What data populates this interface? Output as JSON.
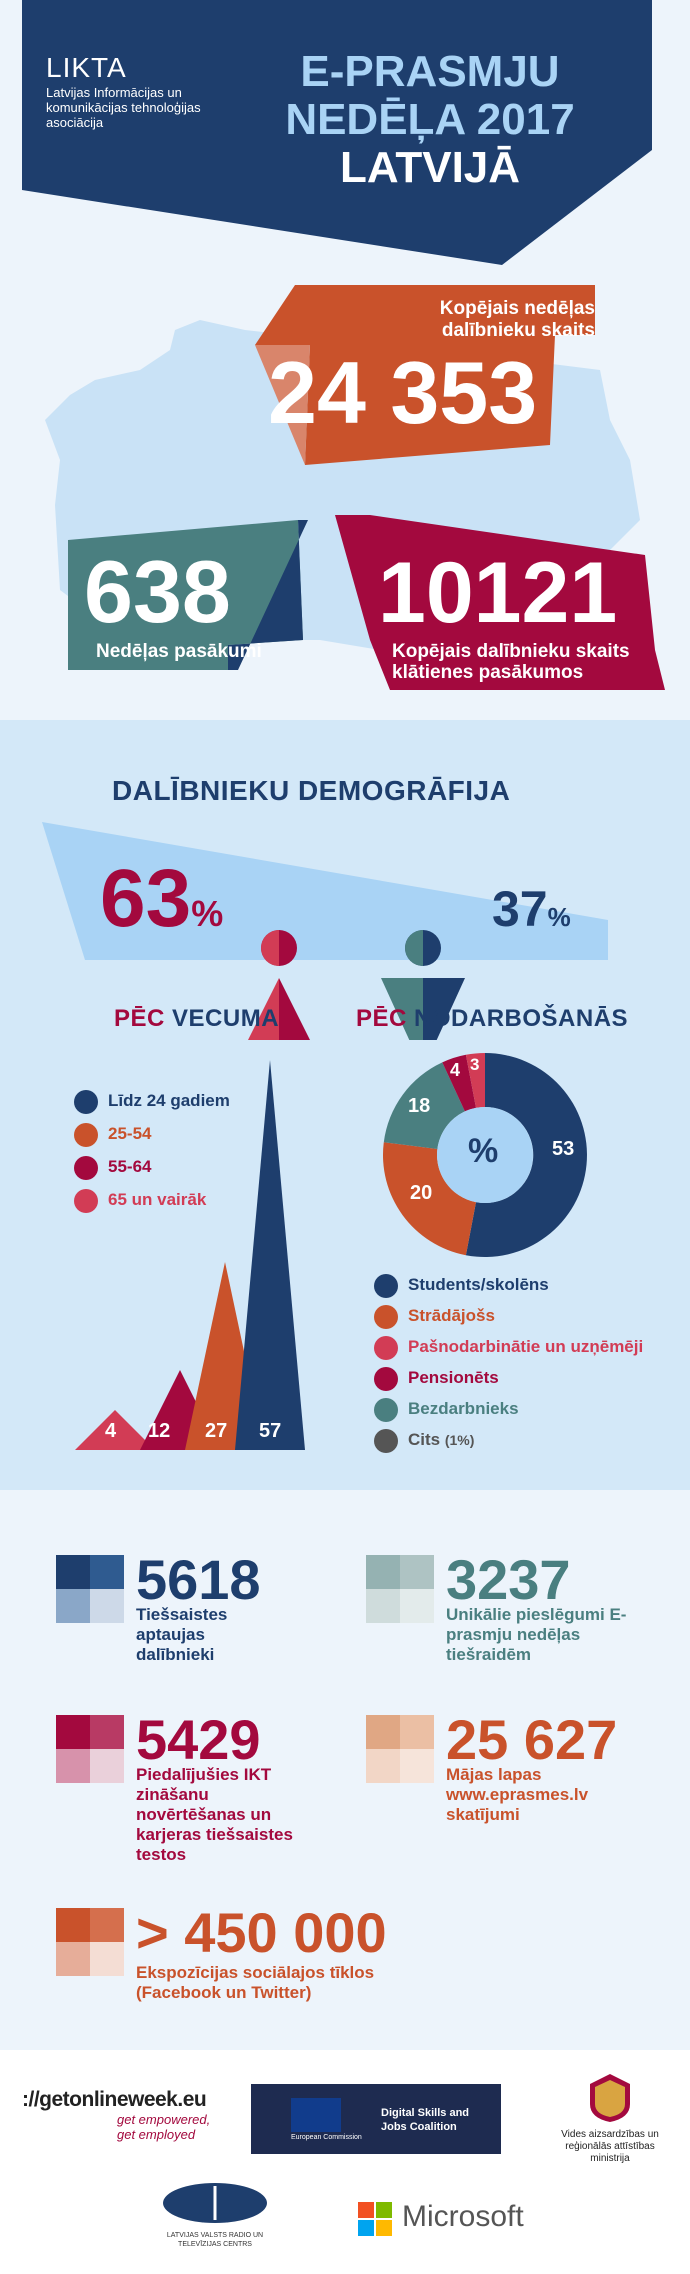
{
  "header": {
    "org": "LIKTA",
    "org_sub": "Latvijas Informācijas un komunikācijas tehnoloģijas asociācija",
    "title_line1": "E-PRASMJU",
    "title_line2": "NEDĒĻA 2017",
    "title_line3": "LATVIJĀ"
  },
  "stats": {
    "total_label": "Kopējais nedēļas dalībnieku skaits",
    "total_value": "24 353",
    "events_value": "638",
    "events_label": "Nedēļas pasākumi",
    "inperson_value": "10121",
    "inperson_label": "Kopējais dalībnieku skaits klātienes pasākumos"
  },
  "demographics": {
    "title": "DALĪBNIEKU DEMOGRĀFIJA",
    "female_pct": "63",
    "male_pct": "37",
    "pct_sign": "%"
  },
  "age": {
    "title_a": "PĒC",
    "title_b": "VECUMA",
    "legend": [
      "Līdz 24 gadiem",
      "25-54",
      "55-64",
      "65 un vairāk"
    ],
    "values": [
      "4",
      "12",
      "27",
      "57"
    ]
  },
  "occupation": {
    "title_a": "PĒC",
    "title_b": "NODARBOŠANĀS",
    "center": "%",
    "legend": [
      "Students/skolēns",
      "Strādājošs",
      "Pašnodarbinātie un uzņēmēji",
      "Pensionēts",
      "Bezdarbnieks",
      "Cits"
    ],
    "other_note": "(1%)",
    "donut_values": [
      "53",
      "20",
      "18",
      "4",
      "3"
    ]
  },
  "numbers": {
    "n1_value": "5618",
    "n1_label": "Tiešsaistes aptaujas dalībnieki",
    "n2_value": "3237",
    "n2_label": "Unikālie pieslēgumi E-prasmju nedēļas tiešraidēm",
    "n3_value": "5429",
    "n3_label": "Piedalījušies IKT zināšanu novērtēšanas un karjeras tiešsaistes testos",
    "n4_value": "25 627",
    "n4_label_1": "Mājas lapas",
    "n4_label_2": "www.eprasmes.lv",
    "n4_label_3": "skatījumi",
    "n5_value": "> 450 000",
    "n5_label": "Ekspozīcijas sociālajos tīklos (Facebook un Twitter)"
  },
  "footer": {
    "gow": "://getonlineweek.eu",
    "gow_tag1": "get empowered,",
    "gow_tag2": "get employed",
    "eu_text": "Digital Skills and Jobs Coalition",
    "eu_small": "European Commission",
    "ministry": "Vides aizsardzības un reģionālās attīstības ministrija",
    "lvrtc": "LATVIJAS VALSTS RADIO UN TELEVĪZIJAS CENTRS",
    "microsoft": "Microsoft"
  },
  "colors": {
    "navy": "#1e3e6d",
    "orange": "#c9522b",
    "crimson": "#a3093e",
    "pink": "#d23c55",
    "teal": "#4a7f80",
    "gray": "#555555",
    "lightblue": "#b9dcf4"
  }
}
